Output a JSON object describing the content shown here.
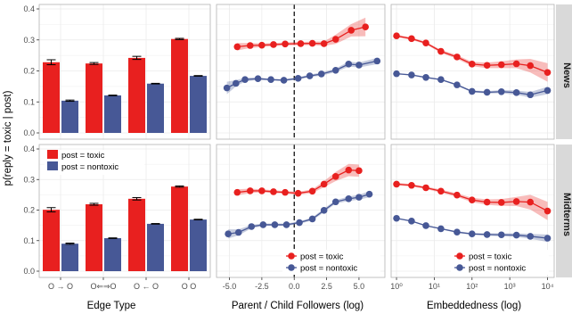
{
  "colors": {
    "toxic": "#e8201f",
    "nontoxic": "#475896",
    "panel_bg": "#ffffff",
    "panel_border": "#b3b3b3",
    "grid": "#ebebeb",
    "strip_bg": "#d9d9d9"
  },
  "axes": {
    "ylabel": "p(reply = toxic | post)",
    "xlabels": [
      "Edge Type",
      "Parent / Child Followers (log)",
      "Embeddedness (log)"
    ],
    "yticks": [
      "0.0",
      "0.1",
      "0.2",
      "0.3",
      "0.4"
    ],
    "edge_type_ticks": [
      "O → O",
      "O⇐⇒O",
      "O ← O",
      "O   O"
    ],
    "followers_ticks": [
      "-5.0",
      "-2.5",
      "0.0",
      "2.5",
      "5.0"
    ],
    "embeddedness_ticks": [
      "10⁰",
      "10¹",
      "10²",
      "10³",
      "10⁴"
    ]
  },
  "rows": [
    "News",
    "Midterms"
  ],
  "legend": {
    "toxic": "post = toxic",
    "nontoxic": "post = nontoxic"
  },
  "chart_data": [
    {
      "type": "bar",
      "row": "News",
      "column": "Edge Type",
      "ylim": [
        0,
        0.4
      ],
      "grid": true,
      "categories": [
        "O → O",
        "O⇐⇒O",
        "O ← O",
        "O   O"
      ],
      "series": [
        {
          "name": "post = toxic",
          "values": [
            0.228,
            0.224,
            0.242,
            0.303
          ],
          "error": [
            0.008,
            0.003,
            0.005,
            0.002
          ]
        },
        {
          "name": "post = nontoxic",
          "values": [
            0.104,
            0.121,
            0.159,
            0.184
          ],
          "error": [
            0.002,
            0.001,
            0.001,
            0.001
          ]
        }
      ]
    },
    {
      "type": "line",
      "row": "News",
      "column": "Parent / Child Followers (log)",
      "xlim": [
        -6,
        7
      ],
      "ylim": [
        0,
        0.4
      ],
      "vline": 0,
      "series": [
        {
          "name": "post = toxic",
          "x": [
            -4.4,
            -3.4,
            -2.5,
            -1.6,
            -0.7,
            0.5,
            1.4,
            2.3,
            3.2,
            4.4,
            5.5
          ],
          "y": [
            0.278,
            0.282,
            0.283,
            0.285,
            0.287,
            0.288,
            0.289,
            0.288,
            0.302,
            0.331,
            0.342
          ],
          "band": [
            0.012,
            0.008,
            0.006,
            0.005,
            0.005,
            0.005,
            0.006,
            0.007,
            0.015,
            0.02,
            0.03
          ]
        },
        {
          "name": "post = nontoxic",
          "x": [
            -5.2,
            -4.5,
            -3.8,
            -2.8,
            -1.8,
            -0.8,
            0.3,
            1.2,
            2.1,
            3.2,
            4.2,
            5.0,
            6.4
          ],
          "y": [
            0.145,
            0.16,
            0.172,
            0.175,
            0.172,
            0.17,
            0.176,
            0.184,
            0.19,
            0.202,
            0.222,
            0.219,
            0.232
          ],
          "band": [
            0.02,
            0.01,
            0.006,
            0.004,
            0.003,
            0.003,
            0.004,
            0.004,
            0.005,
            0.006,
            0.008,
            0.008,
            0.01
          ]
        }
      ]
    },
    {
      "type": "line",
      "row": "News",
      "column": "Embeddedness (log)",
      "xscale": "log",
      "xlim": [
        0.72,
        15000
      ],
      "ylim": [
        0,
        0.4
      ],
      "series": [
        {
          "name": "post = toxic",
          "x": [
            1,
            2.5,
            6,
            15,
            40,
            100,
            250,
            600,
            1500,
            3500,
            10000
          ],
          "y": [
            0.313,
            0.304,
            0.29,
            0.263,
            0.245,
            0.222,
            0.218,
            0.22,
            0.223,
            0.217,
            0.195
          ],
          "band": [
            0.004,
            0.004,
            0.004,
            0.005,
            0.006,
            0.007,
            0.009,
            0.011,
            0.014,
            0.022,
            0.03
          ]
        },
        {
          "name": "post = nontoxic",
          "x": [
            1,
            2.5,
            6,
            15,
            40,
            100,
            250,
            600,
            1500,
            3500,
            10000
          ],
          "y": [
            0.191,
            0.187,
            0.179,
            0.172,
            0.155,
            0.134,
            0.131,
            0.133,
            0.13,
            0.123,
            0.137
          ],
          "band": [
            0.002,
            0.002,
            0.002,
            0.002,
            0.003,
            0.003,
            0.004,
            0.005,
            0.007,
            0.009,
            0.012
          ]
        }
      ]
    },
    {
      "type": "bar",
      "row": "Midterms",
      "column": "Edge Type",
      "ylim": [
        0,
        0.4
      ],
      "grid": true,
      "categories": [
        "O → O",
        "O⇐⇒O",
        "O ← O",
        "O   O"
      ],
      "series": [
        {
          "name": "post = toxic",
          "values": [
            0.201,
            0.219,
            0.237,
            0.277
          ],
          "error": [
            0.007,
            0.003,
            0.004,
            0.002
          ]
        },
        {
          "name": "post = nontoxic",
          "values": [
            0.09,
            0.108,
            0.155,
            0.169
          ],
          "error": [
            0.002,
            0.001,
            0.001,
            0.001
          ]
        }
      ]
    },
    {
      "type": "line",
      "row": "Midterms",
      "column": "Parent / Child Followers (log)",
      "xlim": [
        -6,
        7
      ],
      "ylim": [
        0,
        0.4
      ],
      "vline": 0,
      "series": [
        {
          "name": "post = toxic",
          "x": [
            -4.4,
            -3.4,
            -2.5,
            -1.6,
            -0.7,
            0.3,
            1.4,
            2.3,
            3.2,
            4.2,
            5.0
          ],
          "y": [
            0.258,
            0.263,
            0.263,
            0.26,
            0.258,
            0.255,
            0.262,
            0.285,
            0.31,
            0.331,
            0.329
          ],
          "band": [
            0.01,
            0.007,
            0.005,
            0.005,
            0.004,
            0.005,
            0.006,
            0.01,
            0.015,
            0.02,
            0.02
          ]
        },
        {
          "name": "post = nontoxic",
          "x": [
            -5.1,
            -4.3,
            -3.3,
            -2.4,
            -1.5,
            -0.6,
            0.4,
            1.4,
            2.3,
            3.2,
            4.2,
            5.0,
            5.8
          ],
          "y": [
            0.122,
            0.127,
            0.146,
            0.152,
            0.152,
            0.152,
            0.159,
            0.171,
            0.199,
            0.227,
            0.237,
            0.242,
            0.252
          ],
          "band": [
            0.015,
            0.01,
            0.006,
            0.004,
            0.004,
            0.004,
            0.004,
            0.005,
            0.006,
            0.006,
            0.007,
            0.008,
            0.01
          ]
        }
      ]
    },
    {
      "type": "line",
      "row": "Midterms",
      "column": "Embeddedness (log)",
      "xscale": "log",
      "xlim": [
        0.72,
        15000
      ],
      "ylim": [
        0,
        0.4
      ],
      "series": [
        {
          "name": "post = toxic",
          "x": [
            1,
            2.5,
            6,
            15,
            40,
            100,
            250,
            600,
            1500,
            3500,
            10000
          ],
          "y": [
            0.285,
            0.281,
            0.273,
            0.262,
            0.249,
            0.233,
            0.226,
            0.225,
            0.228,
            0.226,
            0.197
          ],
          "band": [
            0.004,
            0.004,
            0.004,
            0.005,
            0.006,
            0.007,
            0.009,
            0.011,
            0.015,
            0.024,
            0.03
          ]
        },
        {
          "name": "post = nontoxic",
          "x": [
            1,
            2.5,
            6,
            15,
            40,
            100,
            250,
            600,
            1500,
            3500,
            10000
          ],
          "y": [
            0.173,
            0.164,
            0.149,
            0.139,
            0.128,
            0.122,
            0.12,
            0.119,
            0.118,
            0.114,
            0.108
          ],
          "band": [
            0.002,
            0.002,
            0.002,
            0.002,
            0.003,
            0.003,
            0.004,
            0.005,
            0.006,
            0.008,
            0.012
          ]
        }
      ]
    }
  ]
}
